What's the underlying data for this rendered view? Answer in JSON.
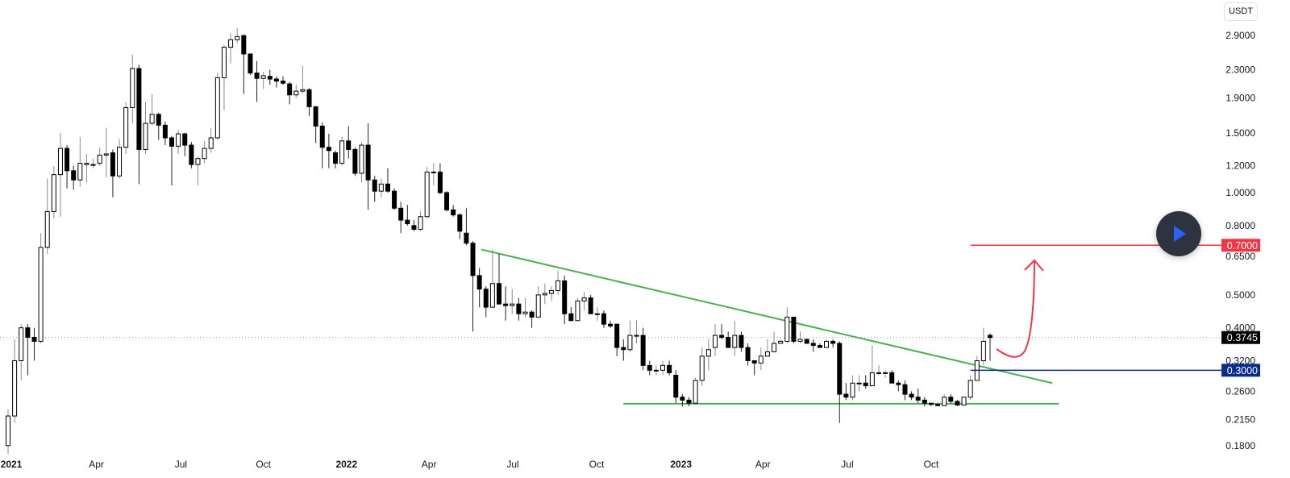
{
  "header": {
    "currency": "USDT"
  },
  "chart_data": {
    "type": "candlestick",
    "interval": "weekly",
    "scale": "log",
    "currency": "USDT",
    "ylim": [
      0.165,
      3.2
    ],
    "y_ticks": [
      "2.9000",
      "2.3000",
      "1.9000",
      "1.5000",
      "1.2000",
      "1.0000",
      "0.8000",
      "0.6500",
      "0.5000",
      "0.4000",
      "0.3200",
      "0.2600",
      "0.2150",
      "0.1800"
    ],
    "x_ticks": [
      {
        "label": "2021",
        "week": 0.5,
        "year": true
      },
      {
        "label": "Apr",
        "week": 13.5
      },
      {
        "label": "Jul",
        "week": 26.4
      },
      {
        "label": "Oct",
        "week": 39
      },
      {
        "label": "2022",
        "week": 51.7,
        "year": true
      },
      {
        "label": "Apr",
        "week": 64.3
      },
      {
        "label": "Jul",
        "week": 77.1
      },
      {
        "label": "Oct",
        "week": 89.9
      },
      {
        "label": "2023",
        "week": 102.8,
        "year": true
      },
      {
        "label": "Apr",
        "week": 115.3
      },
      {
        "label": "Jul",
        "week": 128.2
      },
      {
        "label": "Oct",
        "week": 141
      }
    ],
    "ohlc_fields": [
      "open",
      "high",
      "low",
      "close"
    ],
    "ohlc": [
      [
        0.18,
        0.23,
        0.17,
        0.22
      ],
      [
        0.22,
        0.37,
        0.21,
        0.32
      ],
      [
        0.32,
        0.41,
        0.28,
        0.4
      ],
      [
        0.4,
        0.41,
        0.29,
        0.375
      ],
      [
        0.375,
        0.4,
        0.32,
        0.365
      ],
      [
        0.365,
        0.76,
        0.36,
        0.69
      ],
      [
        0.69,
        1.1,
        0.66,
        0.88
      ],
      [
        0.88,
        1.2,
        0.84,
        1.13
      ],
      [
        1.13,
        1.5,
        0.85,
        1.35
      ],
      [
        1.35,
        1.38,
        1.03,
        1.16
      ],
      [
        1.16,
        1.2,
        1.02,
        1.09
      ],
      [
        1.09,
        1.46,
        1.04,
        1.22
      ],
      [
        1.21,
        1.3,
        1.07,
        1.22
      ],
      [
        1.21,
        1.26,
        1.18,
        1.21
      ],
      [
        1.22,
        1.36,
        1.2,
        1.29
      ],
      [
        1.29,
        1.55,
        1.11,
        1.3
      ],
      [
        1.31,
        1.34,
        0.97,
        1.12
      ],
      [
        1.12,
        1.44,
        1.1,
        1.36
      ],
      [
        1.36,
        1.85,
        1.3,
        1.78
      ],
      [
        1.78,
        2.55,
        1.6,
        2.32
      ],
      [
        2.32,
        2.38,
        1.06,
        1.34
      ],
      [
        1.34,
        1.85,
        1.3,
        1.6
      ],
      [
        1.6,
        1.95,
        1.58,
        1.7
      ],
      [
        1.7,
        1.72,
        1.43,
        1.58
      ],
      [
        1.58,
        1.62,
        1.38,
        1.45
      ],
      [
        1.45,
        1.47,
        1.05,
        1.37
      ],
      [
        1.37,
        1.53,
        1.3,
        1.49
      ],
      [
        1.49,
        1.5,
        1.28,
        1.38
      ],
      [
        1.38,
        1.41,
        1.18,
        1.21
      ],
      [
        1.21,
        1.28,
        1.05,
        1.26
      ],
      [
        1.26,
        1.42,
        1.22,
        1.35
      ],
      [
        1.35,
        1.55,
        1.31,
        1.45
      ],
      [
        1.45,
        2.25,
        1.43,
        2.18
      ],
      [
        2.18,
        2.72,
        1.75,
        2.68
      ],
      [
        2.68,
        2.95,
        2.4,
        2.82
      ],
      [
        2.82,
        3.05,
        2.75,
        2.88
      ],
      [
        2.9,
        2.92,
        1.95,
        2.56
      ],
      [
        2.56,
        2.57,
        2.22,
        2.25
      ],
      [
        2.25,
        2.44,
        1.85,
        2.17
      ],
      [
        2.17,
        2.27,
        2.02,
        2.21
      ],
      [
        2.2,
        2.3,
        2.08,
        2.16
      ],
      [
        2.16,
        2.2,
        2.04,
        2.13
      ],
      [
        2.13,
        2.2,
        2.08,
        2.1
      ],
      [
        2.09,
        2.12,
        1.82,
        1.94
      ],
      [
        1.94,
        2.08,
        1.9,
        1.99
      ],
      [
        1.99,
        2.36,
        1.96,
        2.01
      ],
      [
        2.01,
        2.03,
        1.68,
        1.79
      ],
      [
        1.79,
        1.8,
        1.4,
        1.57
      ],
      [
        1.57,
        1.61,
        1.18,
        1.36
      ],
      [
        1.36,
        1.49,
        1.18,
        1.33
      ],
      [
        1.31,
        1.33,
        1.18,
        1.22
      ],
      [
        1.22,
        1.46,
        1.2,
        1.42
      ],
      [
        1.42,
        1.57,
        1.26,
        1.34
      ],
      [
        1.34,
        1.36,
        1.12,
        1.14
      ],
      [
        1.14,
        1.41,
        1.07,
        1.38
      ],
      [
        1.38,
        1.6,
        0.89,
        1.09
      ],
      [
        1.09,
        1.12,
        0.94,
        1.01
      ],
      [
        1.01,
        1.1,
        0.97,
        1.06
      ],
      [
        1.06,
        1.18,
        1.0,
        1.01
      ],
      [
        1.01,
        1.03,
        0.89,
        0.9
      ],
      [
        0.9,
        0.94,
        0.76,
        0.83
      ],
      [
        0.83,
        0.92,
        0.8,
        0.81
      ],
      [
        0.8,
        0.83,
        0.77,
        0.78
      ],
      [
        0.78,
        0.88,
        0.77,
        0.85
      ],
      [
        0.85,
        1.19,
        0.84,
        1.15
      ],
      [
        1.15,
        1.22,
        1.05,
        1.15
      ],
      [
        1.15,
        1.22,
        0.99,
        1.0
      ],
      [
        1.0,
        1.01,
        0.88,
        0.89
      ],
      [
        0.89,
        0.92,
        0.85,
        0.86
      ],
      [
        0.86,
        0.87,
        0.73,
        0.77
      ],
      [
        0.76,
        0.9,
        0.7,
        0.71
      ],
      [
        0.71,
        0.72,
        0.39,
        0.57
      ],
      [
        0.57,
        0.6,
        0.46,
        0.52
      ],
      [
        0.52,
        0.53,
        0.43,
        0.46
      ],
      [
        0.46,
        0.68,
        0.46,
        0.54
      ],
      [
        0.54,
        0.66,
        0.47,
        0.47
      ],
      [
        0.47,
        0.53,
        0.42,
        0.465
      ],
      [
        0.465,
        0.52,
        0.44,
        0.47
      ],
      [
        0.47,
        0.49,
        0.42,
        0.44
      ],
      [
        0.44,
        0.49,
        0.43,
        0.445
      ],
      [
        0.445,
        0.45,
        0.4,
        0.43
      ],
      [
        0.43,
        0.53,
        0.43,
        0.5
      ],
      [
        0.5,
        0.54,
        0.47,
        0.505
      ],
      [
        0.505,
        0.53,
        0.48,
        0.515
      ],
      [
        0.515,
        0.59,
        0.5,
        0.55
      ],
      [
        0.55,
        0.57,
        0.41,
        0.44
      ],
      [
        0.44,
        0.46,
        0.42,
        0.42
      ],
      [
        0.42,
        0.49,
        0.42,
        0.48
      ],
      [
        0.48,
        0.51,
        0.45,
        0.49
      ],
      [
        0.49,
        0.5,
        0.44,
        0.44
      ],
      [
        0.44,
        0.46,
        0.42,
        0.44
      ],
      [
        0.44,
        0.45,
        0.4,
        0.41
      ],
      [
        0.41,
        0.42,
        0.4,
        0.405
      ],
      [
        0.41,
        0.41,
        0.33,
        0.35
      ],
      [
        0.35,
        0.37,
        0.32,
        0.345
      ],
      [
        0.345,
        0.42,
        0.34,
        0.38
      ],
      [
        0.38,
        0.42,
        0.36,
        0.38
      ],
      [
        0.38,
        0.4,
        0.3,
        0.31
      ],
      [
        0.31,
        0.32,
        0.29,
        0.3
      ],
      [
        0.3,
        0.31,
        0.29,
        0.3
      ],
      [
        0.3,
        0.32,
        0.29,
        0.31
      ],
      [
        0.31,
        0.32,
        0.29,
        0.295
      ],
      [
        0.29,
        0.3,
        0.24,
        0.25
      ],
      [
        0.25,
        0.255,
        0.235,
        0.245
      ],
      [
        0.245,
        0.25,
        0.235,
        0.24
      ],
      [
        0.24,
        0.285,
        0.24,
        0.28
      ],
      [
        0.28,
        0.35,
        0.27,
        0.33
      ],
      [
        0.33,
        0.37,
        0.3,
        0.345
      ],
      [
        0.35,
        0.41,
        0.33,
        0.38
      ],
      [
        0.38,
        0.41,
        0.37,
        0.375
      ],
      [
        0.375,
        0.39,
        0.35,
        0.35
      ],
      [
        0.35,
        0.42,
        0.33,
        0.38
      ],
      [
        0.38,
        0.39,
        0.34,
        0.35
      ],
      [
        0.35,
        0.36,
        0.31,
        0.32
      ],
      [
        0.32,
        0.32,
        0.29,
        0.315
      ],
      [
        0.315,
        0.35,
        0.3,
        0.33
      ],
      [
        0.33,
        0.37,
        0.33,
        0.34
      ],
      [
        0.34,
        0.39,
        0.34,
        0.36
      ],
      [
        0.36,
        0.37,
        0.36,
        0.365
      ],
      [
        0.365,
        0.46,
        0.36,
        0.43
      ],
      [
        0.43,
        0.43,
        0.36,
        0.365
      ],
      [
        0.365,
        0.39,
        0.36,
        0.37
      ],
      [
        0.37,
        0.37,
        0.36,
        0.36
      ],
      [
        0.36,
        0.37,
        0.34,
        0.355
      ],
      [
        0.355,
        0.36,
        0.35,
        0.35
      ],
      [
        0.35,
        0.37,
        0.35,
        0.365
      ],
      [
        0.365,
        0.37,
        0.35,
        0.36
      ],
      [
        0.36,
        0.365,
        0.21,
        0.255
      ],
      [
        0.255,
        0.275,
        0.245,
        0.25
      ],
      [
        0.25,
        0.29,
        0.245,
        0.275
      ],
      [
        0.275,
        0.29,
        0.26,
        0.275
      ],
      [
        0.275,
        0.29,
        0.265,
        0.27
      ],
      [
        0.27,
        0.355,
        0.27,
        0.295
      ],
      [
        0.295,
        0.31,
        0.29,
        0.295
      ],
      [
        0.295,
        0.3,
        0.285,
        0.295
      ],
      [
        0.295,
        0.3,
        0.275,
        0.275
      ],
      [
        0.275,
        0.28,
        0.26,
        0.272
      ],
      [
        0.272,
        0.28,
        0.245,
        0.255
      ],
      [
        0.255,
        0.26,
        0.245,
        0.25
      ],
      [
        0.25,
        0.265,
        0.24,
        0.245
      ],
      [
        0.245,
        0.25,
        0.235,
        0.24
      ],
      [
        0.24,
        0.24,
        0.235,
        0.238
      ],
      [
        0.238,
        0.24,
        0.235,
        0.236
      ],
      [
        0.236,
        0.255,
        0.235,
        0.25
      ],
      [
        0.25,
        0.255,
        0.24,
        0.243
      ],
      [
        0.243,
        0.245,
        0.235,
        0.237
      ],
      [
        0.237,
        0.25,
        0.235,
        0.25
      ],
      [
        0.25,
        0.29,
        0.245,
        0.28
      ],
      [
        0.28,
        0.33,
        0.28,
        0.32
      ],
      [
        0.32,
        0.4,
        0.31,
        0.365
      ],
      [
        0.38,
        0.385,
        0.32,
        0.3745
      ]
    ],
    "last_price": {
      "value": 0.3745,
      "label": "0.3745",
      "color": "#000000"
    },
    "levels": [
      {
        "name": "target",
        "price": 0.7,
        "label": "0.7000",
        "color": "#f23645",
        "from_week": 147
      },
      {
        "name": "support",
        "price": 0.3,
        "label": "0.3000",
        "color": "#0c2c8c",
        "from_week": 147
      }
    ],
    "trendlines": [
      {
        "name": "descending-resistance",
        "color": "#4caf50",
        "points": [
          [
            72.3,
            0.68
          ],
          [
            159.5,
            0.275
          ]
        ]
      },
      {
        "name": "horizontal-support",
        "color": "#4caf50",
        "points": [
          [
            94,
            0.239
          ],
          [
            160.5,
            0.239
          ]
        ]
      }
    ],
    "annotations": [
      {
        "type": "curved-arrow-up",
        "color": "#f23645"
      }
    ]
  }
}
